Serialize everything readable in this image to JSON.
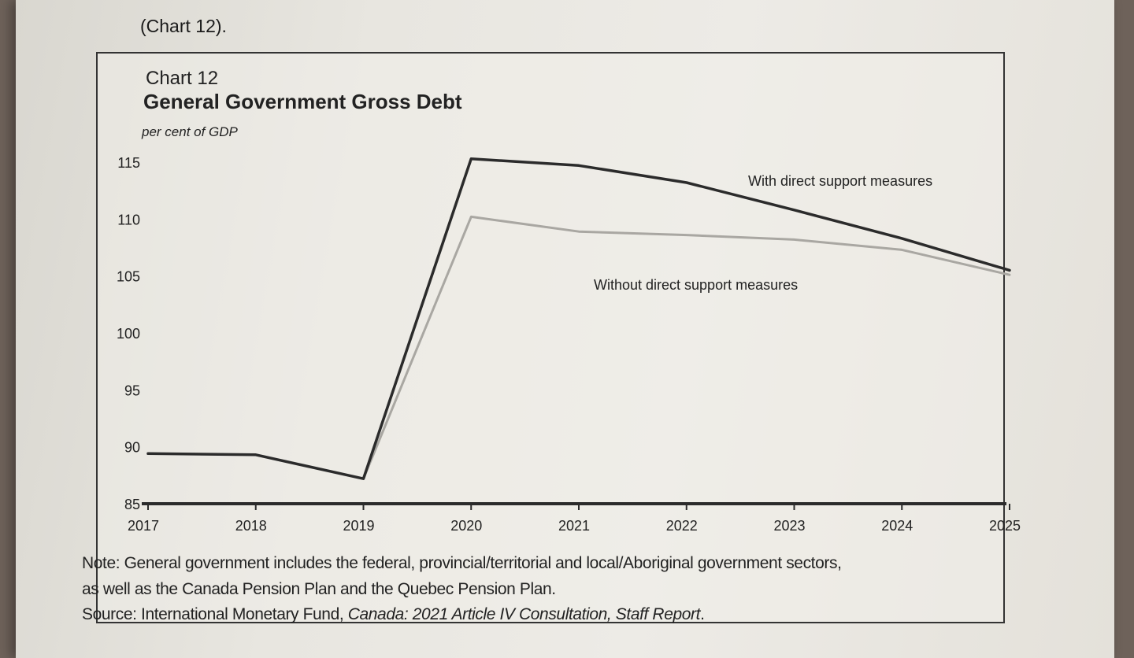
{
  "page": {
    "caption": "(Chart 12)."
  },
  "chart_data": {
    "type": "line",
    "label": "Chart 12",
    "title": "General Government Gross Debt",
    "xlabel": "",
    "ylabel": "per cent of GDP",
    "x": [
      "2017",
      "2018",
      "2019",
      "2020",
      "2021",
      "2022",
      "2023",
      "2024",
      "2025"
    ],
    "yticks": [
      85,
      90,
      95,
      100,
      105,
      110,
      115
    ],
    "ylim": [
      85,
      116
    ],
    "grid": false,
    "series": [
      {
        "name": "With direct support measures",
        "color": "#2b2b2b",
        "values": [
          89.4,
          89.3,
          87.2,
          115.3,
          114.7,
          113.2,
          110.8,
          108.3,
          105.5
        ]
      },
      {
        "name": "Without direct support measures",
        "color": "#a9a7a2",
        "values": [
          null,
          null,
          87.2,
          110.2,
          108.9,
          108.6,
          108.2,
          107.3,
          105.1
        ]
      }
    ]
  },
  "note": {
    "line1": "Note: General government includes the federal, provincial/territorial and local/Aboriginal government sectors,",
    "line2": "as well as the Canada Pension Plan and the Quebec Pension Plan.",
    "source_prefix": "Source: International Monetary Fund, ",
    "source_title": "Canada: 2021 Article IV Consultation, Staff Report",
    "source_suffix": "."
  }
}
